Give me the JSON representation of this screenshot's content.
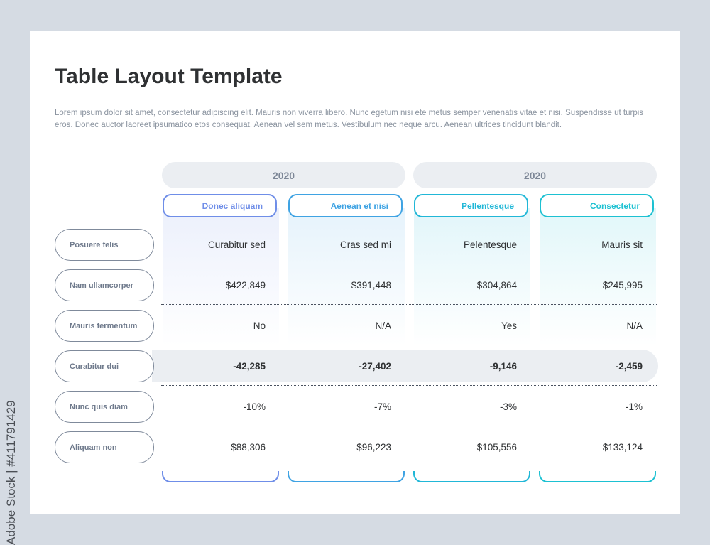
{
  "title": "Table Layout Template",
  "description": "Lorem ipsum dolor sit amet, consectetur adipiscing elit. Mauris non viverra libero. Nunc egetum nisi ete metus semper venenatis vitae et nisi. Suspendisse ut turpis eros. Donec auctor laoreet ipsumatico etos consequat. Aenean vel sem metus. Vestibulum nec neque arcu. Aenean ultrices tincidunt blandit.",
  "years": [
    "2020",
    "2020"
  ],
  "columns": [
    {
      "label": "Donec aliquam",
      "color": "#6f8ee8"
    },
    {
      "label": "Aenean et nisi",
      "color": "#3fa3e3"
    },
    {
      "label": "Pellentesque",
      "color": "#21b7d7"
    },
    {
      "label": "Consectetur",
      "color": "#1dc1d2"
    }
  ],
  "rows": [
    {
      "label": "Posuere felis",
      "values": [
        "Curabitur sed",
        "Cras sed mi",
        "Pelentesque",
        "Mauris sit"
      ],
      "highlight": false
    },
    {
      "label": "Nam ullamcorper",
      "values": [
        "$422,849",
        "$391,448",
        "$304,864",
        "$245,995"
      ],
      "highlight": false
    },
    {
      "label": "Mauris fermentum",
      "values": [
        "No",
        "N/A",
        "Yes",
        "N/A"
      ],
      "highlight": false
    },
    {
      "label": "Curabitur dui",
      "values": [
        "-42,285",
        "-27,402",
        "-9,146",
        "-2,459"
      ],
      "highlight": true
    },
    {
      "label": "Nunc quis diam",
      "values": [
        "-10%",
        "-7%",
        "-3%",
        "-1%"
      ],
      "highlight": false
    },
    {
      "label": "Aliquam non",
      "values": [
        "$88,306",
        "$96,223",
        "$105,556",
        "$133,124"
      ],
      "highlight": false
    }
  ],
  "watermark": "Adobe Stock | #411791429"
}
